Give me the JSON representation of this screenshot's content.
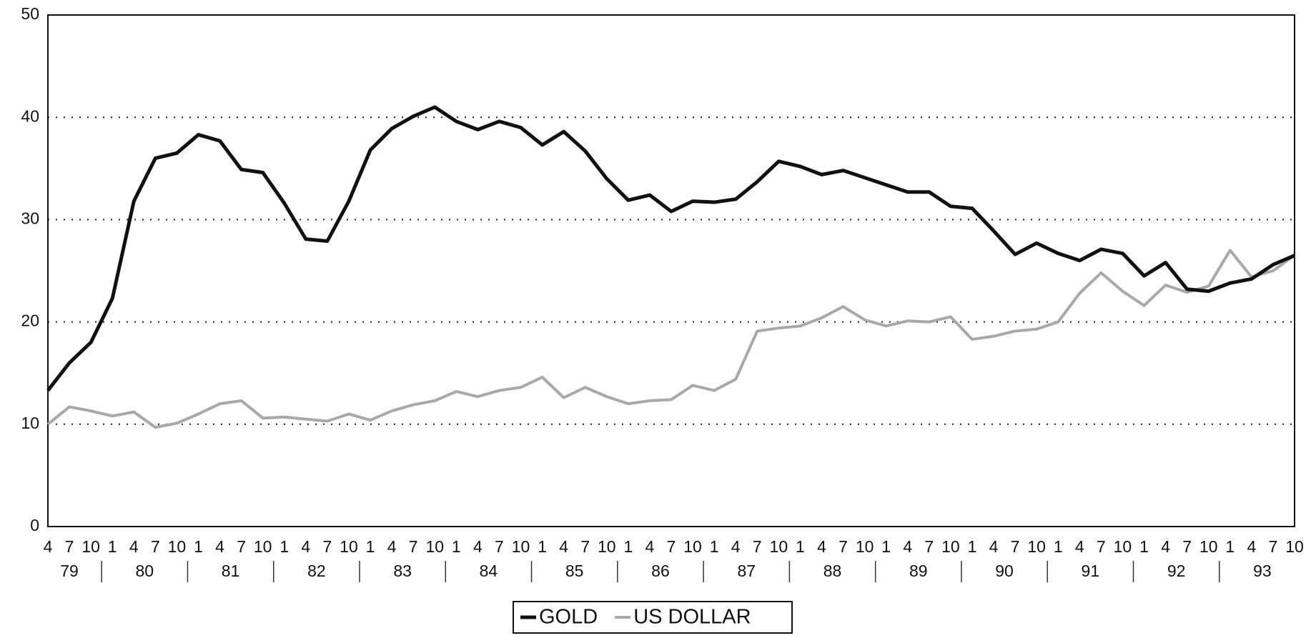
{
  "chart_data": {
    "type": "line",
    "categories": [
      "4",
      "7",
      "10",
      "1",
      "4",
      "7",
      "10",
      "1",
      "4",
      "7",
      "10",
      "1",
      "4",
      "7",
      "10",
      "1",
      "4",
      "7",
      "10",
      "1",
      "4",
      "7",
      "10",
      "1",
      "4",
      "7",
      "10",
      "1",
      "4",
      "7",
      "10",
      "1",
      "4",
      "7",
      "10",
      "1",
      "4",
      "7",
      "10",
      "1",
      "4",
      "7",
      "10",
      "1",
      "4",
      "7",
      "10",
      "1",
      "4",
      "7",
      "10",
      "1",
      "4",
      "7",
      "10",
      "1",
      "4",
      "7",
      "10"
    ],
    "year_labels": [
      "79",
      "80",
      "81",
      "82",
      "83",
      "84",
      "85",
      "86",
      "87",
      "88",
      "89",
      "90",
      "91",
      "92",
      "93"
    ],
    "series": [
      {
        "name": "GOLD",
        "color": "#111111",
        "values": [
          13.3,
          16,
          18,
          22.3,
          31.8,
          36,
          36.5,
          38.3,
          37.7,
          34.9,
          34.6,
          31.6,
          28.1,
          27.9,
          31.8,
          36.8,
          38.9,
          40.1,
          41,
          39.6,
          38.8,
          39.6,
          39,
          37.3,
          38.6,
          36.7,
          34,
          31.9,
          32.4,
          30.8,
          31.8,
          31.7,
          32,
          33.7,
          35.7,
          35.2,
          34.4,
          34.8,
          34.1,
          33.4,
          32.7,
          32.7,
          31.3,
          31.1,
          28.9,
          26.6,
          27.7,
          26.7,
          26,
          27.1,
          26.7,
          24.5,
          25.8,
          23.2,
          23,
          23.8,
          24.2,
          25.6,
          26.5
        ]
      },
      {
        "name": "US DOLLAR",
        "color": "#a8a8a8",
        "values": [
          10,
          11.7,
          11.3,
          10.8,
          11.2,
          9.7,
          10.1,
          11,
          12,
          12.3,
          10.6,
          10.7,
          10.5,
          10.3,
          11,
          10.4,
          11.3,
          11.9,
          12.3,
          13.2,
          12.7,
          13.3,
          13.6,
          14.6,
          12.6,
          13.6,
          12.7,
          12,
          12.3,
          12.4,
          13.8,
          13.3,
          14.4,
          19.1,
          19.4,
          19.6,
          20.4,
          21.5,
          20.2,
          19.6,
          20.1,
          20,
          20.5,
          18.3,
          18.6,
          19.1,
          19.3,
          20,
          22.8,
          24.8,
          23,
          21.6,
          23.6,
          22.9,
          23.5,
          27,
          24.4,
          25,
          26.5
        ]
      }
    ],
    "ylim": [
      0,
      50
    ],
    "yticks": [
      0,
      10,
      20,
      30,
      40,
      50
    ],
    "grid": true
  }
}
